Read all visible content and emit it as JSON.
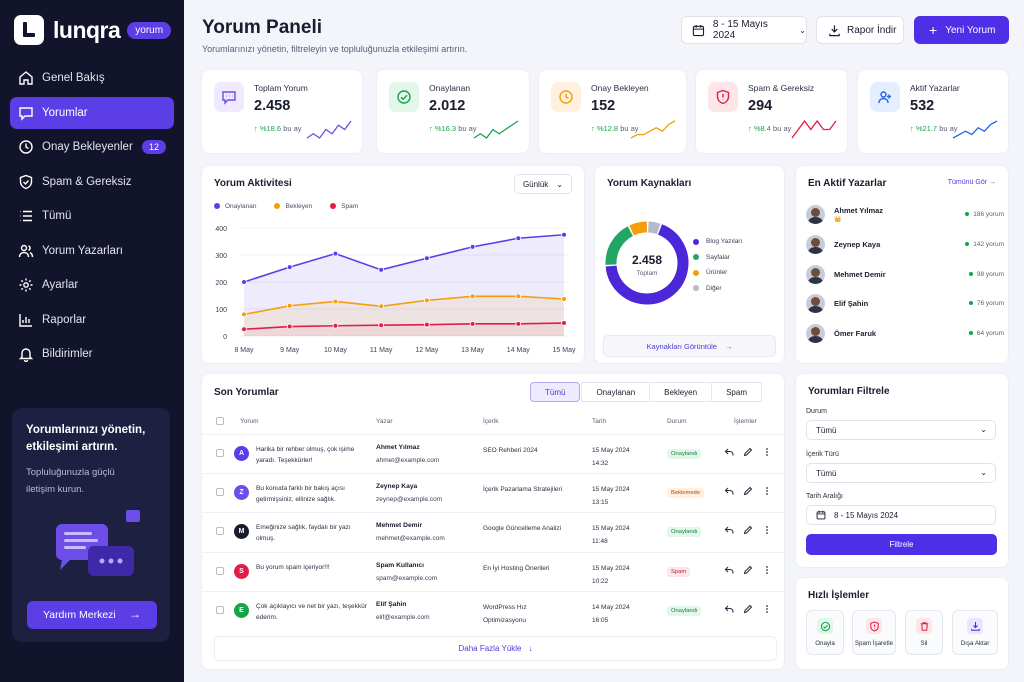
{
  "brand": {
    "name": "lunqra",
    "badge": "yorum"
  },
  "nav": [
    {
      "label": "Genel Bakış",
      "icon": "home-icon"
    },
    {
      "label": "Yorumlar",
      "icon": "comment-icon",
      "active": true
    },
    {
      "label": "Onay Bekleyenler",
      "icon": "clock-icon",
      "badge": "12"
    },
    {
      "label": "Spam & Gereksiz",
      "icon": "shield-icon"
    },
    {
      "label": "Tümü",
      "icon": "list-icon"
    },
    {
      "label": "Yorum Yazarları",
      "icon": "users-icon"
    },
    {
      "label": "Ayarlar",
      "icon": "gear-icon"
    },
    {
      "label": "Raporlar",
      "icon": "chart-icon"
    },
    {
      "label": "Bildirimler",
      "icon": "bell-icon"
    }
  ],
  "promo": {
    "title": "Yorumlarınızı yönetin, etkileşimi artırın.",
    "text": "Topluluğunuzla güçlü iletişim kurun.",
    "button": "Yardım Merkezi"
  },
  "header": {
    "title": "Yorum Paneli",
    "subtitle": "Yorumlarınızı yönetin, filtreleyin ve topluluğunuzla etkileşimi artırın.",
    "date_range": "8 - 15 Mayıs 2024",
    "report_button": "Rapor İndir",
    "new_button": "Yeni Yorum"
  },
  "stats": [
    {
      "label": "Toplam Yorum",
      "value": "2.458",
      "delta": "↑ %18.6",
      "period": "bu ay",
      "color": "#6d4ee8",
      "icon": "chat-bubble-icon",
      "spark": [
        3,
        4,
        3,
        5,
        4,
        6,
        5,
        7
      ]
    },
    {
      "label": "Onaylanan",
      "value": "2.012",
      "delta": "↑ %16.3",
      "period": "bu ay",
      "color": "#16a34a",
      "icon": "check-circle-icon",
      "spark": [
        3,
        4,
        3,
        5,
        4,
        5,
        6,
        7
      ]
    },
    {
      "label": "Onay Bekleyen",
      "value": "152",
      "delta": "↑ %12.8",
      "period": "bu ay",
      "color": "#f59e0b",
      "icon": "clock-icon",
      "spark": [
        2,
        3,
        3,
        4,
        5,
        4,
        6,
        7
      ]
    },
    {
      "label": "Spam & Gereksiz",
      "value": "294",
      "delta": "↑ %8.4",
      "period": "bu ay",
      "color": "#e11d48",
      "icon": "shield-alert-icon",
      "spark": [
        3,
        4,
        5,
        4,
        5,
        4,
        4,
        5
      ]
    },
    {
      "label": "Aktif Yazarlar",
      "value": "532",
      "delta": "↑ %21.7",
      "period": "bu ay",
      "color": "#2563eb",
      "icon": "user-icon",
      "spark": [
        2,
        3,
        4,
        3,
        5,
        4,
        6,
        7
      ]
    }
  ],
  "activity": {
    "title": "Yorum Aktivitesi",
    "period": "Günlük",
    "chart_data": {
      "type": "line",
      "x": [
        "8 May",
        "9 May",
        "10 May",
        "11 May",
        "12 May",
        "13 May",
        "14 May",
        "15 May"
      ],
      "ylim": [
        0,
        400
      ],
      "yticks": [
        0,
        100,
        200,
        300,
        400
      ],
      "series": [
        {
          "name": "Onaylanan",
          "color": "#5b3ee6",
          "values": [
            200,
            255,
            305,
            245,
            288,
            330,
            362,
            375
          ]
        },
        {
          "name": "Bekleyen",
          "color": "#f59e0b",
          "values": [
            80,
            112,
            128,
            110,
            132,
            147,
            147,
            137
          ]
        },
        {
          "name": "Spam",
          "color": "#e11d48",
          "values": [
            25,
            35,
            38,
            40,
            42,
            45,
            45,
            48
          ]
        }
      ]
    }
  },
  "sources": {
    "title": "Yorum Kaynakları",
    "total": "2.458",
    "total_label": "Toplam",
    "button": "Kaynakları Görüntüle",
    "chart_data": {
      "type": "pie",
      "items": [
        {
          "label": "Blog Yazıları",
          "pct": "68.4%",
          "value": 68.4,
          "color": "#4c26d9"
        },
        {
          "label": "Sayfalar",
          "pct": "18.7%",
          "value": 18.7,
          "color": "#22a565"
        },
        {
          "label": "Ürünler",
          "pct": "7.6%",
          "value": 7.6,
          "color": "#f59e0b"
        },
        {
          "label": "Diğer",
          "pct": "5.3%",
          "value": 5.3,
          "color": "#b4b9cc"
        }
      ]
    }
  },
  "authors": {
    "title": "En Aktif Yazarlar",
    "link": "Tümünü Gör",
    "items": [
      {
        "name": "Ahmet Yılmaz",
        "sub": "👑",
        "count": "186 yorum"
      },
      {
        "name": "Zeynep Kaya",
        "count": "142 yorum"
      },
      {
        "name": "Mehmet Demir",
        "count": "98 yorum"
      },
      {
        "name": "Elif Şahin",
        "count": "76 yorum"
      },
      {
        "name": "Ömer Faruk",
        "count": "64 yorum"
      }
    ]
  },
  "recent": {
    "title": "Son Yorumlar",
    "tabs": [
      "Tümü",
      "Onaylanan",
      "Bekleyen",
      "Spam"
    ],
    "headers": [
      "Yorum",
      "Yazar",
      "İçerik",
      "Tarih",
      "Durum",
      "İşlemler"
    ],
    "rows": [
      {
        "initial": "A",
        "color": "#5b3ee6",
        "text": "Harika bir rehber olmuş, çok işime yaradı. Teşekkürler!",
        "name": "Ahmet Yılmaz",
        "email": "ahmet@example.com",
        "content": "SEO Rehberi 2024",
        "date": "15 May 2024",
        "time": "14:32",
        "status": "Onaylandı",
        "status_type": "ok"
      },
      {
        "initial": "Z",
        "color": "#6d4ee8",
        "text": "Bu konuda farklı bir bakış açısı getirmişsiniz, ellinize sağlık.",
        "name": "Zeynep Kaya",
        "email": "zeynep@example.com",
        "content": "İçerik Pazarlama Stratejileri",
        "date": "15 May 2024",
        "time": "13:15",
        "status": "Beklemede",
        "status_type": "wait"
      },
      {
        "initial": "M",
        "color": "#1a1d2e",
        "text": "Emeğinize sağlık, faydalı bir yazı olmuş.",
        "name": "Mehmet Demir",
        "email": "mehmet@example.com",
        "content": "Google Güncelleme Analizi",
        "date": "15 May 2024",
        "time": "11:48",
        "status": "Onaylandı",
        "status_type": "ok"
      },
      {
        "initial": "S",
        "color": "#e11d48",
        "text": "Bu yorum spam içeriyor!!!",
        "name": "Spam Kullanıcı",
        "email": "spam@example.com",
        "content": "En İyi Hosting Önerileri",
        "date": "15 May 2024",
        "time": "10:22",
        "status": "Spam",
        "status_type": "spam"
      },
      {
        "initial": "E",
        "color": "#16a34a",
        "text": "Çok açıklayıcı ve net bir yazı, teşekkür ederim.",
        "name": "Elif Şahin",
        "email": "elif@example.com",
        "content": "WordPress Hız Optimizasyonu",
        "date": "14 May 2024",
        "time": "16:05",
        "status": "Onaylandı",
        "status_type": "ok"
      }
    ],
    "load_more": "Daha Fazla Yükle"
  },
  "filters": {
    "title": "Yorumları Filtrele",
    "status_label": "Durum",
    "status_value": "Tümü",
    "type_label": "İçerik Türü",
    "type_value": "Tümü",
    "date_label": "Tarih Aralığı",
    "date_value": "8 - 15 Mayıs 2024",
    "button": "Filtrele"
  },
  "quick": {
    "title": "Hızlı İşlemler",
    "items": [
      {
        "label": "Onayla",
        "color": "#16a34a",
        "bg": "#e3f6ea",
        "icon": "check-circle-icon"
      },
      {
        "label": "Spam İşaretle",
        "color": "#e11d48",
        "bg": "#fde6ea",
        "icon": "shield-alert-icon"
      },
      {
        "label": "Sil",
        "color": "#e11d48",
        "bg": "#fde6ea",
        "icon": "trash-icon"
      },
      {
        "label": "Dışa Aktar",
        "color": "#4c26d9",
        "bg": "#ebe6ff",
        "icon": "download-icon"
      }
    ]
  }
}
